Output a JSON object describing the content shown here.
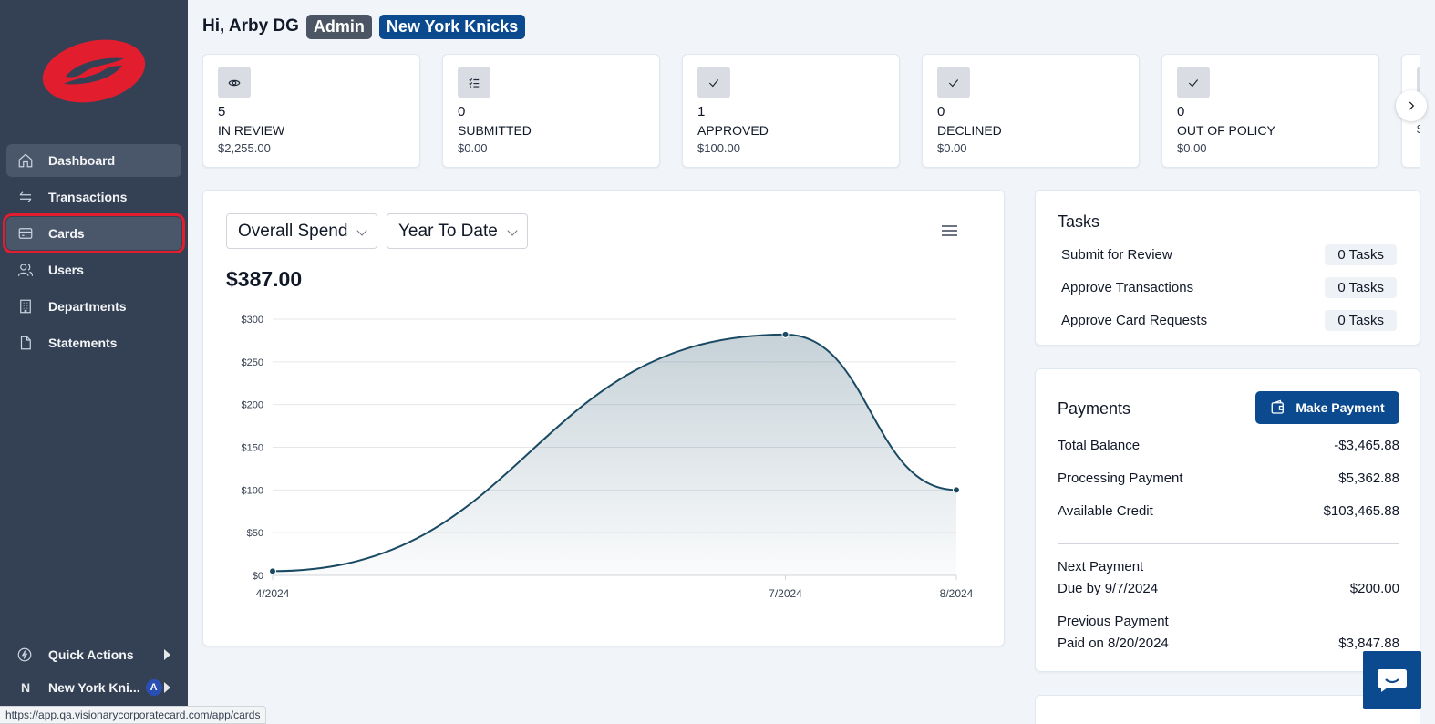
{
  "sidebar": {
    "nav": [
      {
        "label": "Dashboard",
        "icon": "home-icon"
      },
      {
        "label": "Transactions",
        "icon": "transfer-arrows-icon"
      },
      {
        "label": "Cards",
        "icon": "credit-card-icon"
      },
      {
        "label": "Users",
        "icon": "users-icon"
      },
      {
        "label": "Departments",
        "icon": "building-icon"
      },
      {
        "label": "Statements",
        "icon": "document-icon"
      }
    ],
    "quick_actions": "Quick Actions",
    "org_initial": "N",
    "org_name": "New York Kni...",
    "org_badge": "A",
    "status_url": "https://app.qa.visionarycorporatecard.com/app/cards"
  },
  "header": {
    "greeting": "Hi, Arby DG",
    "role": "Admin",
    "team": "New York Knicks"
  },
  "stats": [
    {
      "icon": "eye-icon",
      "count": "5",
      "label": "IN REVIEW",
      "amount": "$2,255.00"
    },
    {
      "icon": "checklist-icon",
      "count": "0",
      "label": "SUBMITTED",
      "amount": "$0.00"
    },
    {
      "icon": "check-icon",
      "count": "1",
      "label": "APPROVED",
      "amount": "$100.00"
    },
    {
      "icon": "check-icon",
      "count": "0",
      "label": "DECLINED",
      "amount": "$0.00"
    },
    {
      "icon": "check-icon",
      "count": "0",
      "label": "OUT OF POLICY",
      "amount": "$0.00"
    },
    {
      "icon": "check-icon",
      "count": "",
      "label": "F",
      "amount": "$"
    }
  ],
  "chart_card": {
    "spend_select": "Overall Spend",
    "period_select": "Year To Date",
    "total": "$387.00"
  },
  "chart_data": {
    "type": "area",
    "x": [
      "4/2024",
      "7/2024",
      "8/2024"
    ],
    "series": [
      {
        "values": [
          5,
          282,
          100
        ]
      }
    ],
    "y_ticks": [
      "$0",
      "$50",
      "$100",
      "$150",
      "$200",
      "$250",
      "$300"
    ],
    "ylim": [
      0,
      300
    ],
    "grid": true,
    "color": "#1a4a63"
  },
  "tasks": {
    "title": "Tasks",
    "rows": [
      {
        "label": "Submit for Review",
        "count": "0 Tasks"
      },
      {
        "label": "Approve Transactions",
        "count": "0 Tasks"
      },
      {
        "label": "Approve Card Requests",
        "count": "0 Tasks"
      }
    ]
  },
  "payments": {
    "title": "Payments",
    "button": "Make Payment",
    "total_balance_label": "Total Balance",
    "total_balance": "-$3,465.88",
    "processing_label": "Processing Payment",
    "processing": "$5,362.88",
    "available_label": "Available Credit",
    "available": "$103,465.88",
    "next_label": "Next Payment",
    "next_due": "Due by 9/7/2024",
    "next_amount": "$200.00",
    "prev_label": "Previous Payment",
    "prev_paid": "Paid on 8/20/2024",
    "prev_amount": "$3,847.88"
  },
  "colors": {
    "sidebar": "#344155",
    "brand_red": "#e11d2e",
    "primary": "#0b4a8e"
  }
}
